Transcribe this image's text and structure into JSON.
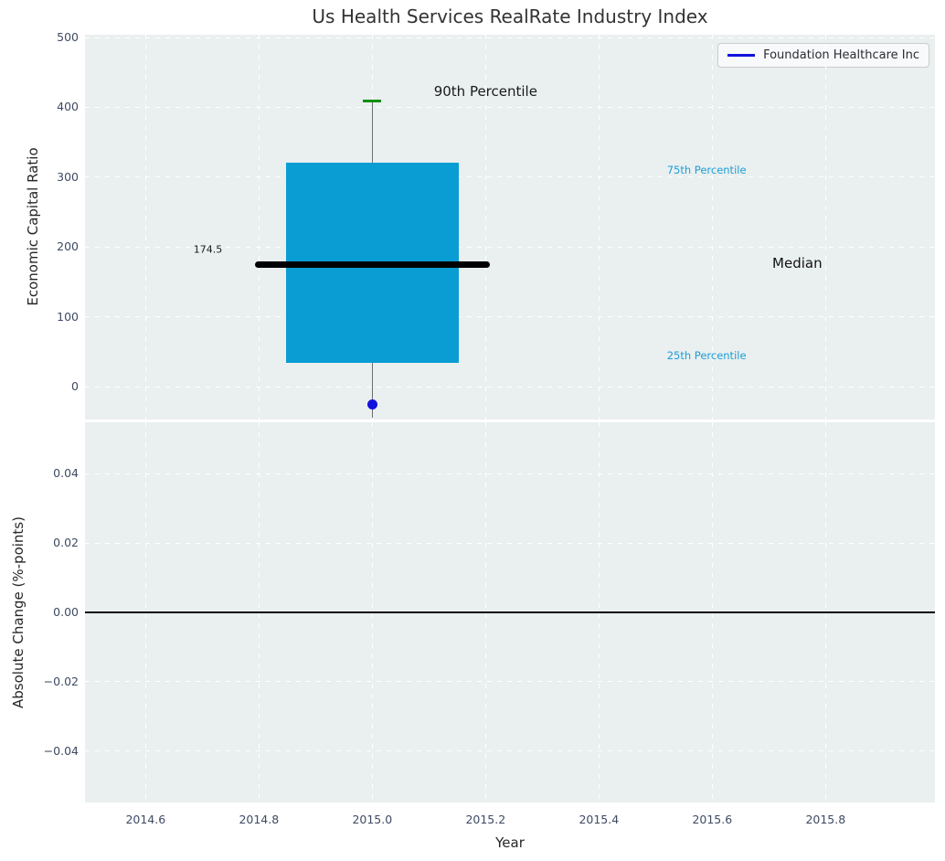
{
  "chart_data": {
    "type": "box",
    "title": "Us Health Services RealRate Industry Index",
    "xlabel": "Year",
    "xlim": [
      2014.493,
      2015.993
    ],
    "xticks": [
      {
        "v": 2014.6,
        "label": "2014.6"
      },
      {
        "v": 2014.8,
        "label": "2014.8"
      },
      {
        "v": 2015.0,
        "label": "2015.0"
      },
      {
        "v": 2015.2,
        "label": "2015.2"
      },
      {
        "v": 2015.4,
        "label": "2015.4"
      },
      {
        "v": 2015.6,
        "label": "2015.6"
      },
      {
        "v": 2015.8,
        "label": "2015.8"
      }
    ],
    "grid": {
      "style": "dashed",
      "color": "#ffffff"
    },
    "panels": [
      {
        "name": "economic-capital-ratio",
        "ylabel": "Economic Capital Ratio",
        "ylim": [
          -47,
          504
        ],
        "yticks": [
          {
            "v": 0,
            "label": "0"
          },
          {
            "v": 100,
            "label": "100"
          },
          {
            "v": 200,
            "label": "200"
          },
          {
            "v": 300,
            "label": "300"
          },
          {
            "v": 400,
            "label": "400"
          },
          {
            "v": 500,
            "label": "500"
          }
        ],
        "box": {
          "x": 2015.0,
          "q25": 34,
          "median": 174.5,
          "q75": 320.5,
          "p90": 409.5,
          "whisker_low_clipped": -44,
          "box_halfwidth": 0.1525,
          "median_halfwidth": 0.2075,
          "cap_halfwidth": 0.016,
          "fill_color": "#099dd3",
          "median_color": "#000000",
          "whisker_color": "#6e6e6e",
          "cap_color": "#0a8f0a"
        },
        "marker": {
          "series": "Foundation Healthcare Inc",
          "x": 2015.0,
          "y": -25.4,
          "color": "#1212dd",
          "diameter": 11
        },
        "legend": {
          "label": "Foundation Healthcare Inc",
          "color": "#1212dd"
        },
        "annotations": [
          {
            "text": "90th Percentile",
            "x": 2015.2,
            "y": 423,
            "color": "#1a1a1a",
            "size": 15
          },
          {
            "text": "75th Percentile",
            "x": 2015.59,
            "y": 310,
            "color": "#1c9fd6",
            "size": 11.5
          },
          {
            "text": "174.5",
            "x": 2014.71,
            "y": 196,
            "color": "#1a1a1a",
            "size": 11
          },
          {
            "text": "Median",
            "x": 2015.75,
            "y": 177,
            "color": "#111111",
            "size": 15
          },
          {
            "text": "25th Percentile",
            "x": 2015.59,
            "y": 44.5,
            "color": "#1c9fd6",
            "size": 11.5
          }
        ]
      },
      {
        "name": "absolute-change",
        "ylabel": "Absolute Change (%-points)",
        "ylim": [
          -0.0549,
          0.0549
        ],
        "yticks": [
          {
            "v": 0.04,
            "label": "0.04"
          },
          {
            "v": 0.02,
            "label": "0.02"
          },
          {
            "v": 0.0,
            "label": "0.00"
          },
          {
            "v": -0.02,
            "label": "−0.02"
          },
          {
            "v": -0.04,
            "label": "−0.04"
          }
        ],
        "zero_line": {
          "y": 0.0,
          "color": "#000000"
        }
      }
    ]
  }
}
